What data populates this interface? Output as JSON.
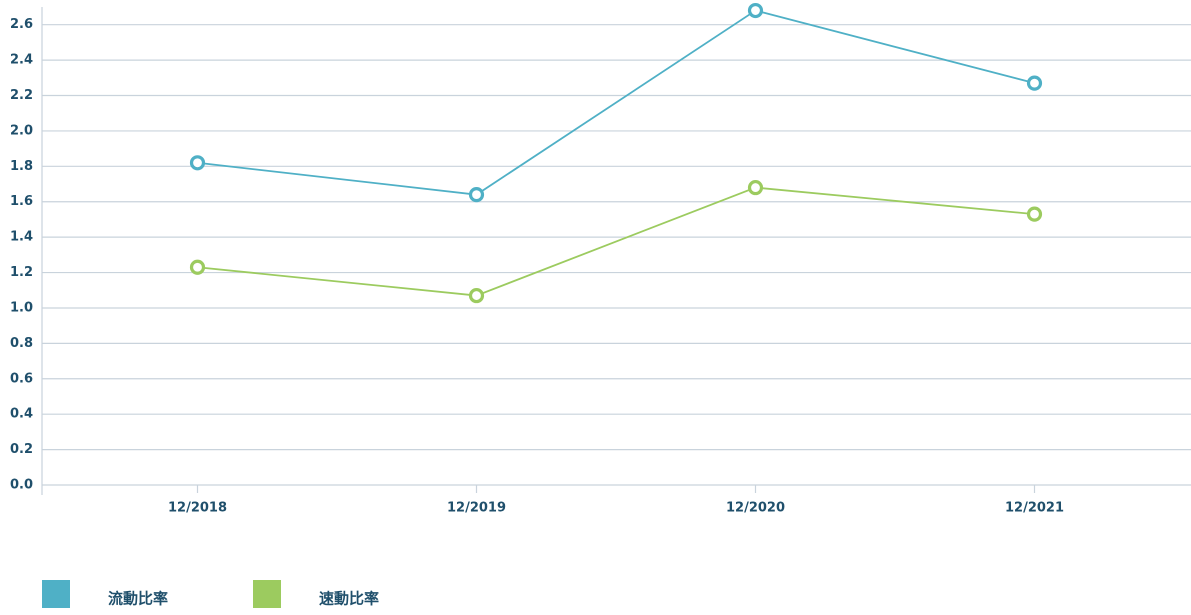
{
  "chart_data": {
    "type": "line",
    "categories": [
      "12/2018",
      "12/2019",
      "12/2020",
      "12/2021"
    ],
    "series": [
      {
        "name": "流動比率",
        "color": "#4fb0c6",
        "values": [
          1.82,
          1.64,
          2.68,
          2.27
        ]
      },
      {
        "name": "速動比率",
        "color": "#9ccb5f",
        "values": [
          1.23,
          1.07,
          1.68,
          1.53
        ]
      }
    ],
    "ylim": [
      0,
      2.7
    ],
    "yticks": [
      {
        "value": 0,
        "label": "0.0"
      },
      0.2,
      0.4,
      0.6,
      0.8,
      {
        "value": 1,
        "label": "1.0"
      },
      1.2,
      1.4,
      1.6,
      1.8,
      {
        "value": 2,
        "label": "2.0"
      },
      2.2,
      2.4,
      2.6
    ],
    "grid": true,
    "legend": "bottom-left"
  }
}
